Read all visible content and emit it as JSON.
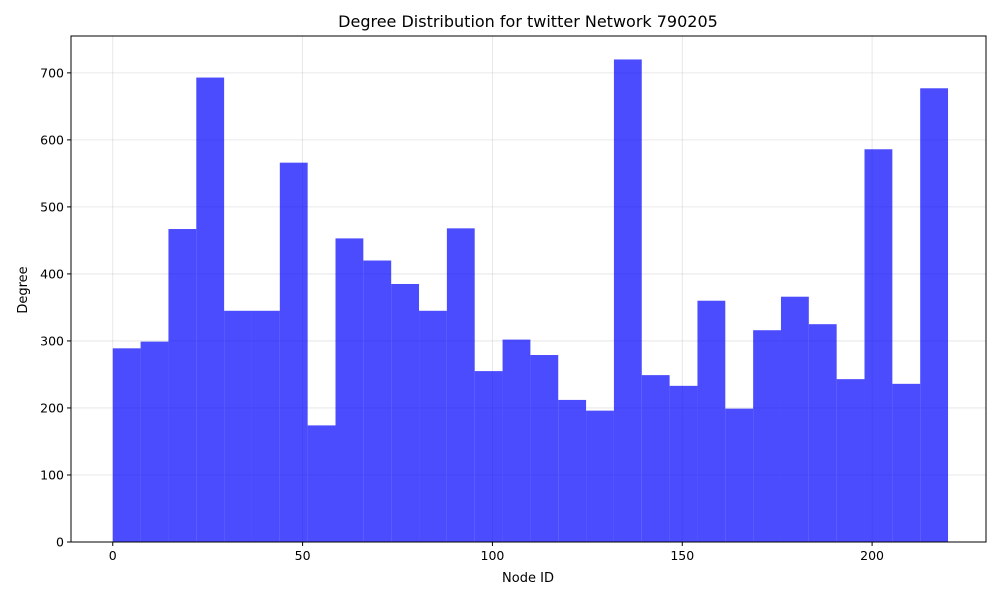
{
  "chart_data": {
    "type": "bar",
    "title": "Degree Distribution for twitter Network 790205",
    "xlabel": "Node ID",
    "ylabel": "Degree",
    "xlim": [
      -11,
      230
    ],
    "ylim": [
      0,
      755
    ],
    "xticks": [
      0,
      50,
      100,
      150,
      200
    ],
    "yticks": [
      0,
      100,
      200,
      300,
      400,
      500,
      600,
      700
    ],
    "grid": true,
    "bar_color": "#0000ff",
    "bar_opacity": 0.7,
    "bin_width": 7.333,
    "bins_start": [
      0,
      7.333,
      14.667,
      22,
      29.333,
      36.667,
      44,
      51.333,
      58.667,
      66,
      73.333,
      80.667,
      88,
      95.333,
      102.667,
      110,
      117.333,
      124.667,
      132,
      139.333,
      146.667,
      154,
      161.333,
      168.667,
      176,
      183.333,
      190.667,
      198,
      205.333,
      212.667
    ],
    "values": [
      289,
      299,
      467,
      693,
      345,
      345,
      566,
      174,
      453,
      420,
      385,
      345,
      468,
      255,
      302,
      279,
      212,
      196,
      720,
      249,
      233,
      360,
      199,
      316,
      366,
      325,
      243,
      586,
      236,
      677
    ]
  }
}
